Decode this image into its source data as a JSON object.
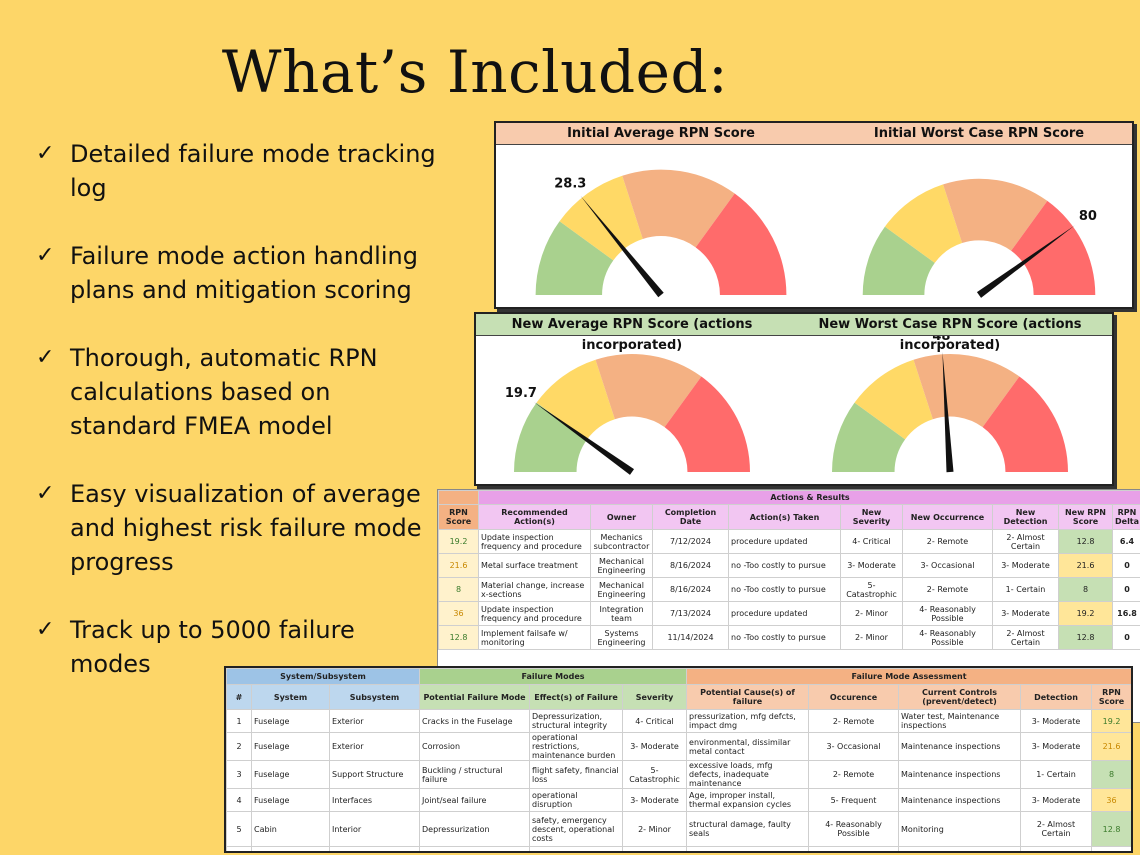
{
  "slide": {
    "title": "What’s Included:",
    "check_icon": "checkmark-icon",
    "bullets": [
      "Detailed failure mode tracking log",
      "Failure mode action handling plans and mitigation scoring",
      "Thorough, automatic RPN calculations based on standard FMEA model",
      "Easy visualization of average and highest risk failure mode progress",
      "Track up to 5000 failure modes"
    ]
  },
  "gauges": [
    {
      "title": "Initial Average RPN Score",
      "value": 28.3,
      "label": "28.3",
      "max": 100,
      "header_color": "#f8cbad"
    },
    {
      "title": "Initial Worst Case RPN Score",
      "value": 80,
      "label": "80",
      "max": 100,
      "header_color": "#f8cbad"
    },
    {
      "title": "New Average RPN Score (actions incorporated)",
      "value": 19.7,
      "label": "19.7",
      "max": 100,
      "header_color": "#c6e0b4"
    },
    {
      "title": "New Worst Case RPN Score (actions incorporated)",
      "value": 48,
      "label": "48",
      "max": 100,
      "header_color": "#c6e0b4"
    }
  ],
  "gauge_colors": [
    "#a9d18e",
    "#ffd966",
    "#f4b183",
    "#ff6b6b"
  ],
  "actions_table": {
    "group_title": "Actions & Results",
    "headers": [
      "RPN Score",
      "Recommended Action(s)",
      "Owner",
      "Completion Date",
      "Action(s) Taken",
      "New Severity",
      "New Occurrence",
      "New Detection",
      "New RPN Score",
      "RPN Delta"
    ],
    "rows": [
      [
        "19.2",
        "Update inspection frequency and procedure",
        "Mechanics subcontractor",
        "7/12/2024",
        "procedure updated",
        "4- Critical",
        "2- Remote",
        "2- Almost Certain",
        "12.8",
        "6.4"
      ],
      [
        "21.6",
        "Metal surface treatment",
        "Mechanical Engineering",
        "8/16/2024",
        "no -Too costly to pursue",
        "3- Moderate",
        "3- Occasional",
        "3- Moderate",
        "21.6",
        "0"
      ],
      [
        "8",
        "Material change, increase x-sections",
        "Mechanical Engineering",
        "8/16/2024",
        "no -Too costly to pursue",
        "5- Catastrophic",
        "2- Remote",
        "1- Certain",
        "8",
        "0"
      ],
      [
        "36",
        "Update inspection frequency and procedure",
        "Integration team",
        "7/13/2024",
        "procedure updated",
        "2- Minor",
        "4- Reasonably Possible",
        "3- Moderate",
        "19.2",
        "16.8"
      ],
      [
        "12.8",
        "Implement failsafe w/ monitoring",
        "Systems Engineering",
        "11/14/2024",
        "no -Too costly to pursue",
        "2- Minor",
        "4- Reasonably Possible",
        "2- Almost Certain",
        "12.8",
        "0"
      ]
    ]
  },
  "fmea_table": {
    "groups": [
      "System/Subsystem",
      "Failure Modes",
      "Failure Mode Assessment"
    ],
    "headers": [
      "#",
      "System",
      "Subsystem",
      "Potential Failure Mode",
      "Effect(s) of Failure",
      "Severity",
      "Potential Cause(s) of failure",
      "Occurence",
      "Current Controls (prevent/detect)",
      "Detection",
      "RPN Score"
    ],
    "rows": [
      [
        "1",
        "Fuselage",
        "Exterior",
        "Cracks in the Fuselage",
        "Depressurization, structural integrity",
        "4- Critical",
        "pressurization, mfg defcts, impact dmg",
        "2- Remote",
        "Water test, Maintenance inspections",
        "3- Moderate",
        "19.2"
      ],
      [
        "2",
        "Fuselage",
        "Exterior",
        "Corrosion",
        "operational restrictions, maintenance burden",
        "3- Moderate",
        "environmental, dissimilar metal contact",
        "3- Occasional",
        "Maintenance inspections",
        "3- Moderate",
        "21.6"
      ],
      [
        "3",
        "Fuselage",
        "Support Structure",
        "Buckling / structural failure",
        "flight safety, financial loss",
        "5- Catastrophic",
        "excessive loads, mfg defects, inadequate maintenance",
        "2- Remote",
        "Maintenance inspections",
        "1- Certain",
        "8"
      ],
      [
        "4",
        "Fuselage",
        "Interfaces",
        "Joint/seal failure",
        "operational disruption",
        "3- Moderate",
        "Age, improper install, thermal expansion cycles",
        "5- Frequent",
        "Maintenance inspections",
        "3- Moderate",
        "36"
      ],
      [
        "5",
        "Cabin",
        "Interior",
        "Depressurization",
        "safety, emergency descent, operational costs",
        "2- Minor",
        "structural damage, faulty seals",
        "4- Reasonably Possible",
        "Monitoring",
        "2- Almost Certain",
        "12.8"
      ],
      [
        "",
        "",
        "",
        "",
        "safety, emergency",
        "",
        "",
        "",
        "",
        "",
        ""
      ]
    ]
  }
}
